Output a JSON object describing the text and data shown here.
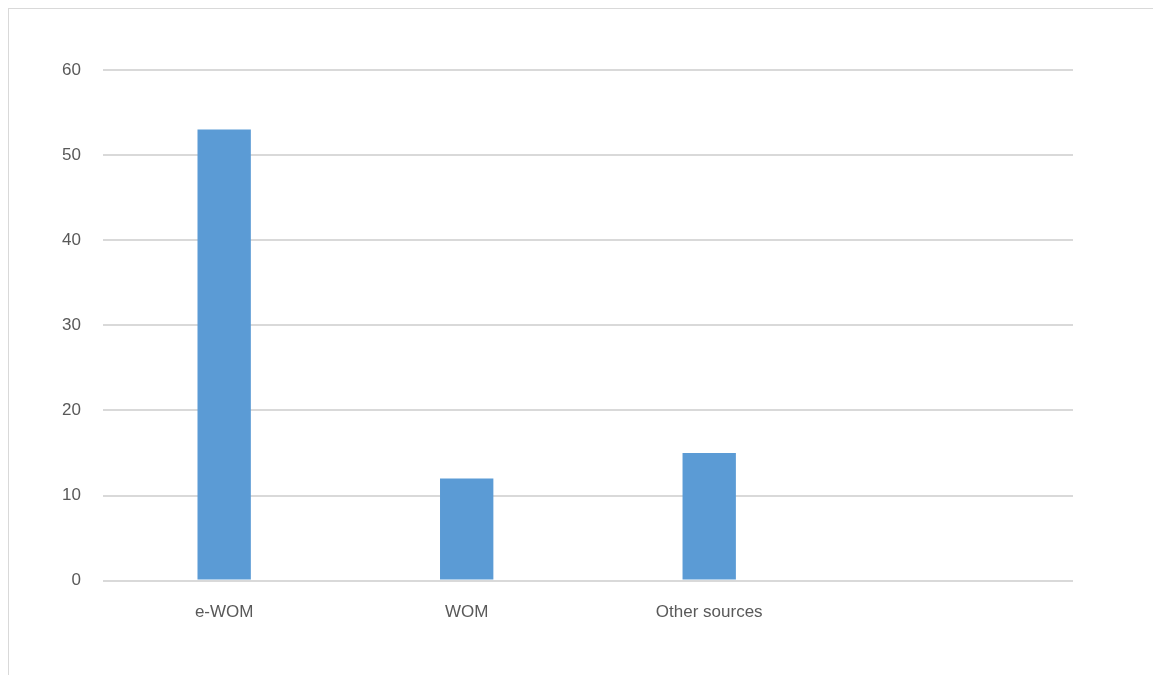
{
  "chart_data": {
    "type": "bar",
    "categories": [
      "e-WOM",
      "WOM",
      "Other sources",
      null
    ],
    "values": [
      53,
      12,
      15,
      null
    ],
    "color": "#5b9bd5",
    "ylim": [
      0,
      60
    ],
    "yticks": [
      0,
      10,
      20,
      30,
      40,
      50,
      60
    ],
    "grid": "y"
  }
}
